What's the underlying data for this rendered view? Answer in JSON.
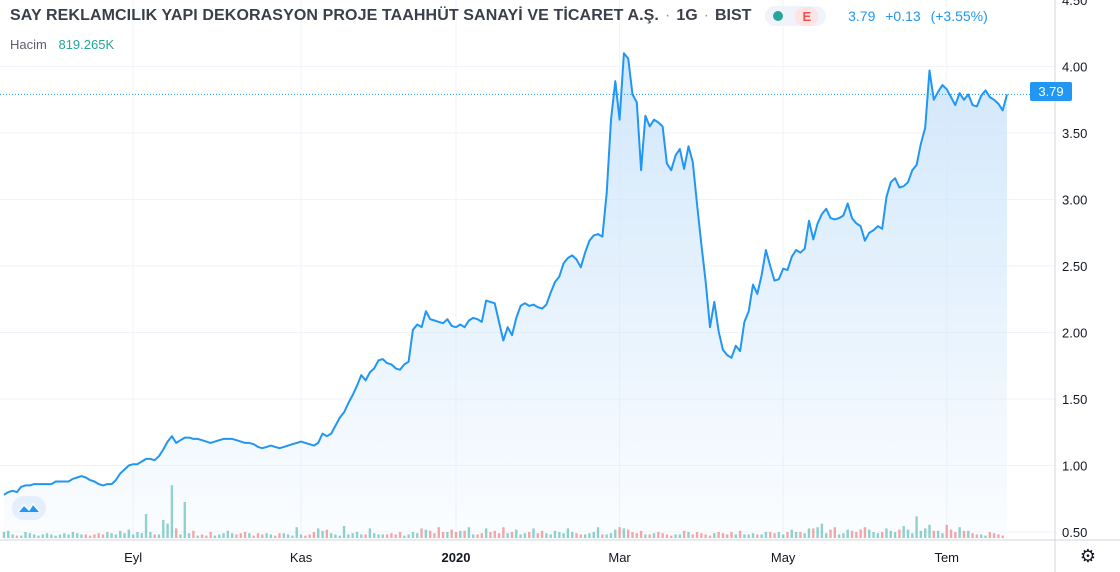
{
  "header": {
    "symbol_name": "SAY REKLAMCILIK YAPI DEKORASYON PROJE TAAHHÜT SANAYİ VE TİCARET A.Ş.",
    "interval": "1G",
    "exchange": "BIST",
    "e_badge": "E",
    "last": "3.79",
    "change": "+0.13",
    "change_pct": "(+3.55%)"
  },
  "volume": {
    "label": "Hacim",
    "value": "819.265K"
  },
  "price_tag": "3.79",
  "icons": {
    "logo": "tradingview-logo-icon",
    "settings": "gear-icon",
    "status": "market-dot-icon"
  },
  "colors": {
    "line": "#2196f3",
    "area_top": "#cfe6fb",
    "vol_up": "#26a69a",
    "vol_down": "#ef5350",
    "axis_text": "#131722"
  },
  "chart_data": {
    "type": "area",
    "title": "",
    "xlabel": "",
    "ylabel": "",
    "y_ticks": [
      "0.50",
      "1.00",
      "1.50",
      "2.00",
      "2.50",
      "3.00",
      "3.50",
      "4.00",
      "4.50"
    ],
    "ylim": [
      0.45,
      4.5
    ],
    "x_ticks": [
      {
        "label": "Eyl",
        "bold": false,
        "index": 30
      },
      {
        "label": "Kas",
        "bold": false,
        "index": 69
      },
      {
        "label": "2020",
        "bold": true,
        "index": 105
      },
      {
        "label": "Mar",
        "bold": false,
        "index": 143
      },
      {
        "label": "May",
        "bold": false,
        "index": 181
      },
      {
        "label": "Tem",
        "bold": false,
        "index": 219
      }
    ],
    "grid": true,
    "last_price_line": 3.79,
    "series": [
      {
        "values": [
          0.78,
          0.8,
          0.81,
          0.8,
          0.84,
          0.85,
          0.85,
          0.86,
          0.86,
          0.86,
          0.86,
          0.86,
          0.88,
          0.88,
          0.88,
          0.88,
          0.9,
          0.91,
          0.92,
          0.91,
          0.89,
          0.88,
          0.86,
          0.85,
          0.86,
          0.86,
          0.89,
          0.94,
          0.97,
          1.0,
          1.01,
          1.01,
          1.03,
          1.05,
          1.05,
          1.04,
          1.07,
          1.12,
          1.18,
          1.22,
          1.17,
          1.19,
          1.21,
          1.21,
          1.2,
          1.2,
          1.19,
          1.18,
          1.17,
          1.18,
          1.19,
          1.2,
          1.2,
          1.2,
          1.19,
          1.18,
          1.17,
          1.17,
          1.16,
          1.14,
          1.13,
          1.14,
          1.15,
          1.14,
          1.13,
          1.14,
          1.15,
          1.16,
          1.17,
          1.18,
          1.17,
          1.16,
          1.15,
          1.17,
          1.24,
          1.22,
          1.24,
          1.3,
          1.36,
          1.4,
          1.47,
          1.53,
          1.6,
          1.68,
          1.64,
          1.7,
          1.73,
          1.79,
          1.8,
          1.77,
          1.76,
          1.73,
          1.72,
          1.76,
          1.78,
          2.02,
          2.06,
          2.04,
          2.16,
          2.1,
          2.09,
          2.08,
          2.07,
          2.1,
          2.05,
          2.04,
          2.06,
          2.04,
          2.09,
          2.11,
          2.1,
          2.08,
          2.24,
          2.23,
          2.22,
          2.08,
          1.94,
          2.04,
          1.98,
          2.11,
          2.2,
          2.22,
          2.2,
          2.21,
          2.19,
          2.18,
          2.21,
          2.3,
          2.38,
          2.42,
          2.52,
          2.56,
          2.58,
          2.55,
          2.49,
          2.6,
          2.69,
          2.73,
          2.74,
          2.72,
          3.05,
          3.6,
          3.89,
          3.6,
          4.1,
          4.06,
          3.79,
          3.73,
          3.22,
          3.63,
          3.55,
          3.6,
          3.58,
          3.55,
          3.27,
          3.22,
          3.33,
          3.38,
          3.23,
          3.4,
          3.28,
          2.96,
          2.66,
          2.38,
          2.04,
          2.23,
          2.01,
          1.87,
          1.83,
          1.81,
          1.9,
          1.86,
          2.08,
          2.16,
          2.36,
          2.29,
          2.43,
          2.62,
          2.5,
          2.39,
          2.4,
          2.48,
          2.47,
          2.57,
          2.62,
          2.6,
          2.63,
          2.84,
          2.7,
          2.82,
          2.89,
          2.93,
          2.86,
          2.85,
          2.86,
          2.88,
          2.97,
          2.86,
          2.82,
          2.8,
          2.69,
          2.75,
          2.77,
          2.8,
          2.78,
          3.02,
          3.13,
          3.16,
          3.09,
          3.1,
          3.13,
          3.22,
          3.26,
          3.42,
          3.54,
          3.97,
          3.75,
          3.81,
          3.86,
          3.83,
          3.77,
          3.71,
          3.8,
          3.75,
          3.79,
          3.71,
          3.7,
          3.78,
          3.82,
          3.77,
          3.75,
          3.72,
          3.67,
          3.79
        ]
      }
    ],
    "volume_up": [
      5,
      6,
      3,
      4,
      2,
      5,
      4,
      3,
      2,
      3,
      4,
      3,
      2,
      3,
      4,
      3,
      5,
      4,
      3,
      2,
      3,
      4,
      3,
      2,
      5,
      4,
      3,
      6,
      4,
      7,
      3,
      5,
      4,
      20,
      5,
      4,
      3,
      15,
      12,
      44,
      6,
      3,
      30,
      4,
      3,
      2,
      9,
      3,
      4,
      2,
      3,
      4,
      6,
      4,
      3,
      2,
      3,
      4,
      5,
      3,
      6,
      4,
      3,
      2,
      3,
      4,
      3,
      2,
      9,
      3,
      4,
      3,
      40,
      8,
      6,
      5,
      4,
      3,
      2,
      10,
      3,
      4,
      5,
      3,
      6,
      8,
      4,
      3,
      3,
      5,
      7,
      4,
      4,
      2,
      3,
      5,
      4,
      6,
      7,
      11,
      5,
      3,
      4,
      5,
      3,
      2,
      6,
      4,
      9,
      3,
      5,
      4,
      8,
      3,
      3,
      6,
      5,
      4,
      6,
      7,
      3,
      4,
      5,
      8,
      6,
      5,
      4,
      3,
      6,
      5,
      4,
      8,
      5,
      6,
      7,
      3,
      4,
      5,
      9,
      10,
      3,
      4,
      7,
      6,
      8,
      9,
      5,
      3,
      4,
      3,
      5,
      4,
      6,
      3,
      2,
      4,
      3,
      3,
      4,
      5,
      3,
      4,
      3,
      7,
      5,
      4,
      3,
      6,
      5,
      4,
      3,
      2,
      3,
      3,
      4,
      2,
      3,
      5,
      4,
      8,
      5,
      3,
      4,
      7,
      5,
      3,
      4,
      8,
      6,
      9,
      12,
      4,
      5,
      6,
      3,
      4,
      7,
      4,
      6,
      5,
      3,
      7,
      5,
      4,
      3,
      8,
      6,
      5,
      9,
      10,
      7,
      4,
      18,
      6,
      8,
      11,
      5,
      6,
      4,
      8,
      6,
      5,
      9,
      7,
      6,
      4,
      5,
      3,
      2,
      4
    ],
    "volume_down": [
      2,
      3,
      4,
      2,
      3,
      4,
      2,
      3,
      5,
      2,
      3,
      4,
      2,
      3,
      2,
      4,
      3,
      2,
      4,
      3,
      2,
      3,
      4,
      3,
      2,
      3,
      4,
      2,
      3,
      2,
      4,
      3,
      2,
      3,
      4,
      3,
      2,
      6,
      4,
      3,
      8,
      4,
      3,
      5,
      6,
      4,
      3,
      2,
      5,
      4,
      3,
      2,
      3,
      4,
      3,
      4,
      5,
      3,
      2,
      4,
      3,
      5,
      3,
      2,
      4,
      3,
      2,
      3,
      4,
      3,
      2,
      3,
      5,
      18,
      12,
      7,
      14,
      9,
      6,
      4,
      5,
      3,
      6,
      4,
      3,
      5,
      4,
      7,
      5,
      3,
      4,
      3,
      5,
      4,
      3,
      7,
      12,
      8,
      14,
      6,
      4,
      9,
      5,
      3,
      7,
      5,
      4,
      6,
      5,
      8,
      3,
      4,
      7,
      5,
      6,
      4,
      9,
      3,
      5,
      6,
      4,
      7,
      5,
      3,
      4,
      6,
      8,
      5,
      3,
      4,
      5,
      7,
      6,
      4,
      3,
      5,
      4,
      6,
      9,
      3,
      12,
      26,
      18,
      9,
      11,
      7,
      5,
      4,
      6,
      5,
      3,
      7,
      5,
      4,
      3,
      2,
      4,
      3,
      6,
      4,
      3,
      5,
      4,
      3,
      2,
      6,
      5,
      4,
      3,
      5,
      4,
      6,
      3,
      4,
      2,
      3,
      4,
      6,
      5,
      4,
      6,
      3,
      5,
      7,
      6,
      5,
      8,
      11,
      8,
      6,
      5,
      4,
      7,
      9,
      5,
      7,
      8,
      6,
      5,
      7,
      9,
      6,
      4,
      3,
      5,
      4,
      6,
      8,
      7,
      5,
      4,
      3,
      6,
      4,
      5,
      7,
      6,
      8,
      9,
      11,
      7,
      5,
      10,
      6,
      5,
      4,
      3,
      6,
      4,
      5,
      4,
      3,
      2,
      3
    ]
  }
}
